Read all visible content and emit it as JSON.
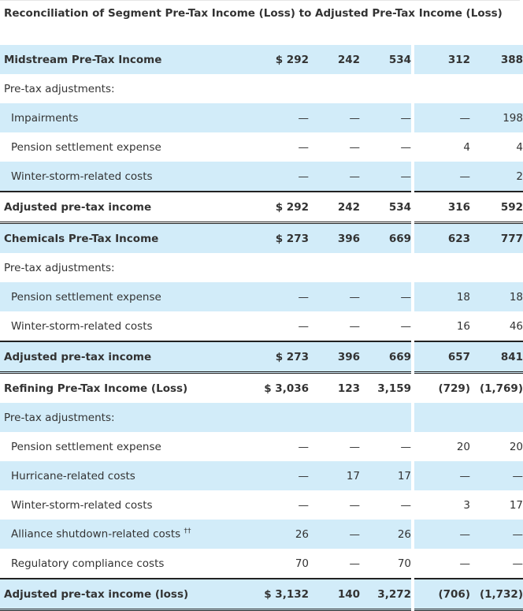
{
  "title": "Reconciliation of Segment Pre-Tax Income (Loss) to Adjusted Pre-Tax Income (Loss)",
  "rows": [
    {
      "label": "Midstream Pre-Tax Income",
      "style": "blue bold",
      "indent": false,
      "values": [
        "$ 292",
        "242",
        "534",
        "312",
        "388"
      ]
    },
    {
      "label": "Pre-tax adjustments:",
      "style": "plain",
      "indent": false,
      "values": [
        "",
        "",
        "",
        "",
        ""
      ]
    },
    {
      "label": "Impairments",
      "style": "blue",
      "indent": true,
      "values": [
        "—",
        "—",
        "—",
        "—",
        "198"
      ]
    },
    {
      "label": "Pension settlement expense",
      "style": "plain",
      "indent": true,
      "values": [
        "—",
        "—",
        "—",
        "4",
        "4"
      ]
    },
    {
      "label": "Winter-storm-related costs",
      "style": "blue",
      "indent": true,
      "values": [
        "—",
        "—",
        "—",
        "—",
        "2"
      ]
    },
    {
      "label": "Adjusted pre-tax income",
      "style": "plain bold adj",
      "indent": false,
      "values": [
        "$ 292",
        "242",
        "534",
        "316",
        "592"
      ]
    },
    {
      "label": "Chemicals Pre-Tax Income",
      "style": "blue bold",
      "indent": false,
      "values": [
        "$ 273",
        "396",
        "669",
        "623",
        "777"
      ]
    },
    {
      "label": "Pre-tax adjustments:",
      "style": "plain",
      "indent": false,
      "values": [
        "",
        "",
        "",
        "",
        ""
      ]
    },
    {
      "label": "Pension settlement expense",
      "style": "blue",
      "indent": true,
      "values": [
        "—",
        "—",
        "—",
        "18",
        "18"
      ]
    },
    {
      "label": "Winter-storm-related costs",
      "style": "plain",
      "indent": true,
      "values": [
        "—",
        "—",
        "—",
        "16",
        "46"
      ]
    },
    {
      "label": "Adjusted pre-tax income",
      "style": "blue bold adj",
      "indent": false,
      "values": [
        "$ 273",
        "396",
        "669",
        "657",
        "841"
      ]
    },
    {
      "label": "Refining Pre-Tax Income (Loss)",
      "style": "plain bold",
      "indent": false,
      "values": [
        "$ 3,036",
        "123",
        "3,159",
        "(729)",
        "(1,769)"
      ]
    },
    {
      "label": "Pre-tax adjustments:",
      "style": "blue",
      "indent": false,
      "values": [
        "",
        "",
        "",
        "",
        ""
      ]
    },
    {
      "label": "Pension settlement expense",
      "style": "plain",
      "indent": true,
      "values": [
        "—",
        "—",
        "—",
        "20",
        "20"
      ]
    },
    {
      "label": "Hurricane-related costs",
      "style": "blue",
      "indent": true,
      "values": [
        "—",
        "17",
        "17",
        "—",
        "—"
      ]
    },
    {
      "label": "Winter-storm-related costs",
      "style": "plain",
      "indent": true,
      "values": [
        "—",
        "—",
        "—",
        "3",
        "17"
      ]
    },
    {
      "label": "Alliance shutdown-related costs",
      "sup": "††",
      "style": "blue",
      "indent": true,
      "values": [
        "26",
        "—",
        "26",
        "—",
        "—"
      ]
    },
    {
      "label": "Regulatory compliance costs",
      "style": "plain",
      "indent": true,
      "values": [
        "70",
        "—",
        "70",
        "—",
        "—"
      ]
    },
    {
      "label": "Adjusted pre-tax income (loss)",
      "style": "blue bold adj",
      "indent": false,
      "values": [
        "$ 3,132",
        "140",
        "3,272",
        "(706)",
        "(1,732)"
      ]
    }
  ]
}
